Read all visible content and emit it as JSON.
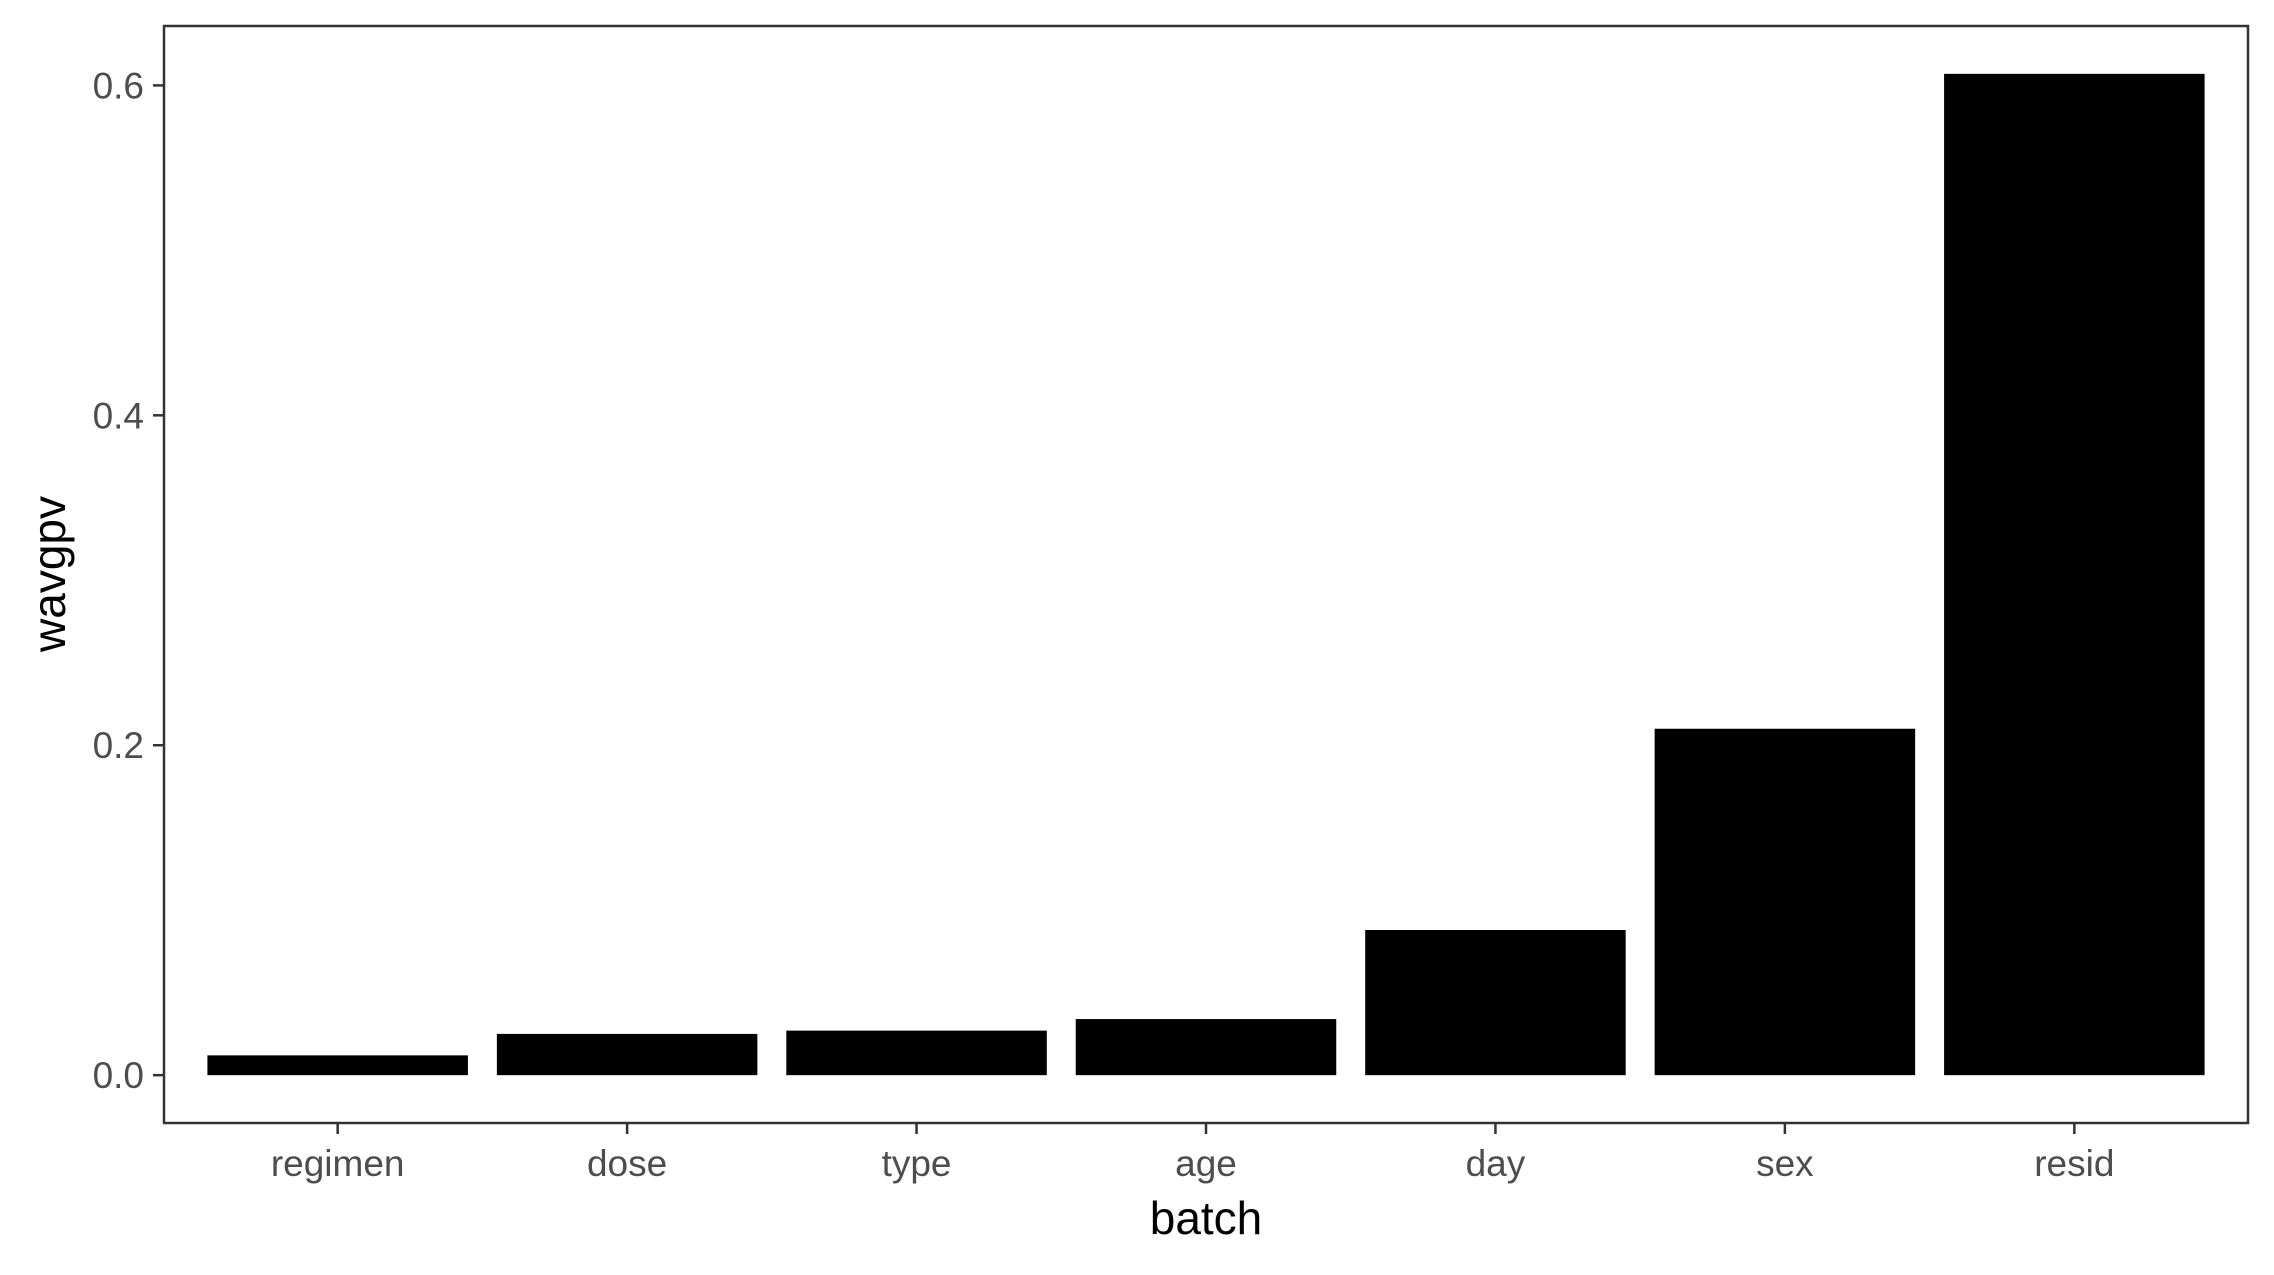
{
  "chart_data": {
    "type": "bar",
    "title": "",
    "xlabel": "batch",
    "ylabel": "wavgpv",
    "categories": [
      "regimen",
      "dose",
      "type",
      "age",
      "day",
      "sex",
      "resid"
    ],
    "values": [
      0.012,
      0.025,
      0.027,
      0.034,
      0.088,
      0.21,
      0.607
    ],
    "ylim": [
      -0.029,
      0.636
    ],
    "yticks": [
      0.0,
      0.2,
      0.4,
      0.6
    ],
    "ytick_labels": [
      "0.0",
      "0.2",
      "0.4",
      "0.6"
    ],
    "grid": false,
    "legend": "none",
    "bar_color": "#000000",
    "panel_border_color": "#333333"
  }
}
